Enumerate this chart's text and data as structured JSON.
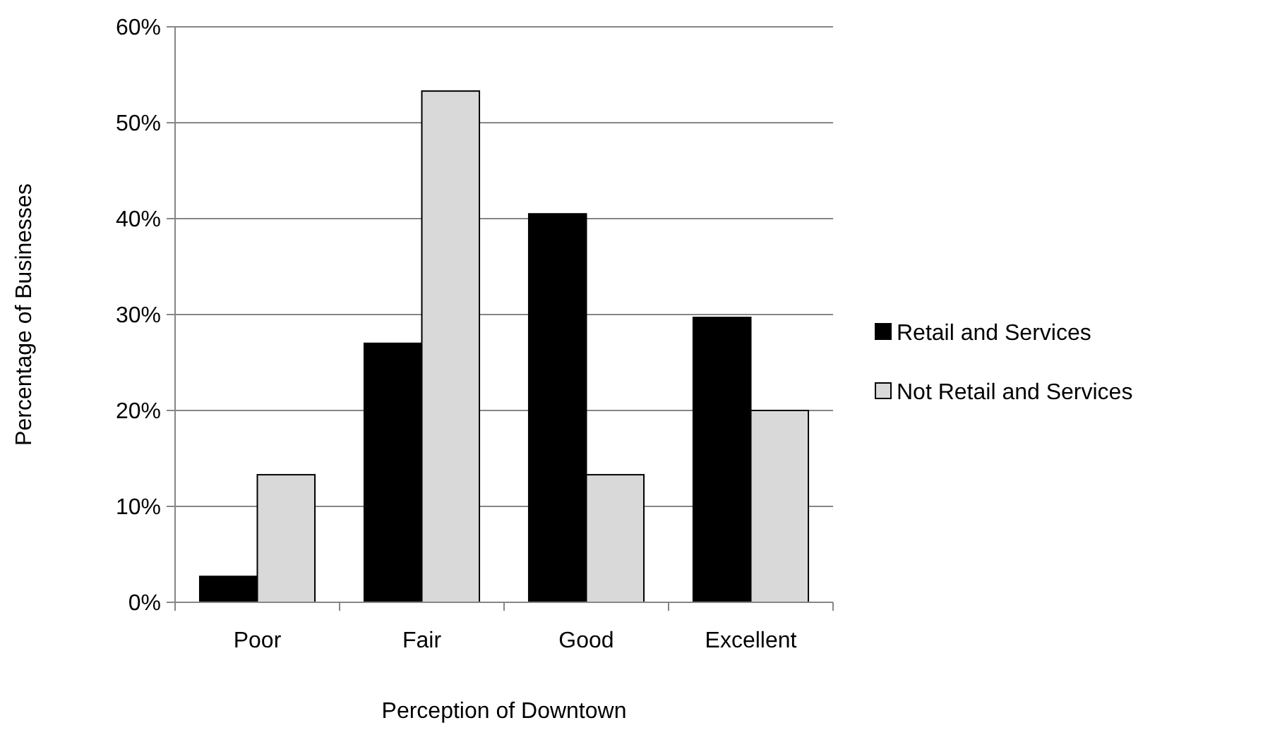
{
  "chart_data": {
    "type": "bar",
    "xlabel": "Perception of Downtown",
    "ylabel": "Percentage of Businesses",
    "categories": [
      "Poor",
      "Fair",
      "Good",
      "Excellent"
    ],
    "series": [
      {
        "name": "Retail and Services",
        "color": "#000000",
        "values": [
          2.7,
          27,
          40.5,
          29.7
        ]
      },
      {
        "name": "Not Retail and Services",
        "color": "#d9d9d9",
        "values": [
          13.3,
          53.3,
          13.3,
          20
        ]
      }
    ],
    "ylim": [
      0,
      60
    ],
    "yticks": [
      {
        "value": 0,
        "label": "0%"
      },
      {
        "value": 10,
        "label": "10%"
      },
      {
        "value": 20,
        "label": "20%"
      },
      {
        "value": 30,
        "label": "30%"
      },
      {
        "value": 40,
        "label": "40%"
      },
      {
        "value": 50,
        "label": "50%"
      },
      {
        "value": 60,
        "label": "60%"
      }
    ],
    "grid": "y",
    "legend": "right"
  }
}
